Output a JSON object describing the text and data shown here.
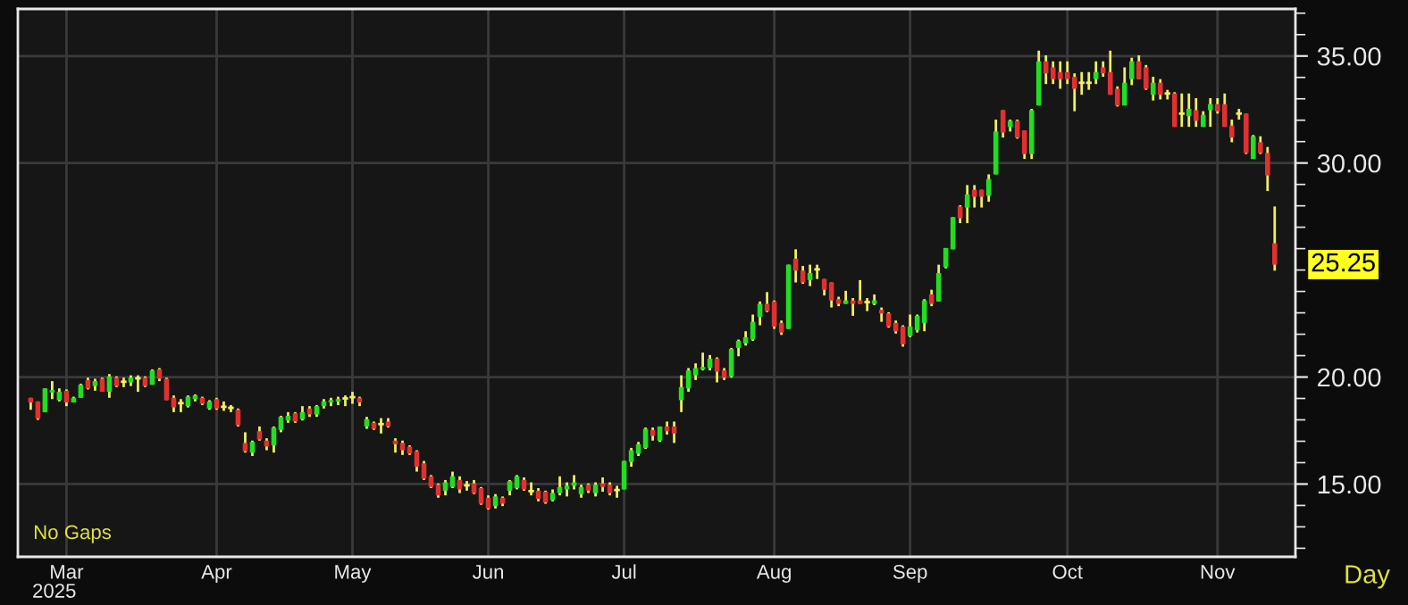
{
  "chart_data": {
    "type": "candlestick",
    "categories": [
      null,
      null,
      null,
      null,
      null,
      "Mar",
      null,
      null,
      null,
      null,
      null,
      null,
      null,
      null,
      null,
      null,
      null,
      null,
      null,
      null,
      null,
      null,
      null,
      null,
      null,
      null,
      "Apr",
      null,
      null,
      null,
      null,
      null,
      null,
      null,
      null,
      null,
      null,
      null,
      null,
      null,
      null,
      null,
      null,
      null,
      null,
      "May",
      null,
      null,
      null,
      null,
      null,
      null,
      null,
      null,
      null,
      null,
      null,
      null,
      null,
      null,
      null,
      null,
      null,
      null,
      "Jun",
      null,
      null,
      null,
      null,
      null,
      null,
      null,
      null,
      null,
      null,
      null,
      null,
      null,
      null,
      null,
      null,
      null,
      null,
      "Jul",
      null,
      null,
      null,
      null,
      null,
      null,
      null,
      null,
      null,
      null,
      null,
      null,
      null,
      null,
      null,
      null,
      null,
      null,
      null,
      null,
      "Aug",
      null,
      null,
      null,
      null,
      null,
      null,
      null,
      null,
      null,
      null,
      null,
      null,
      null,
      null,
      null,
      null,
      null,
      null,
      "Sep",
      null,
      null,
      null,
      null,
      null,
      null,
      null,
      null,
      null,
      null,
      null,
      null,
      null,
      null,
      null,
      null,
      null,
      null,
      null,
      null,
      null,
      "Oct",
      null,
      null,
      null,
      null,
      null,
      null,
      null,
      null,
      null,
      null,
      null,
      null,
      null,
      null,
      null,
      null,
      null,
      null,
      null,
      null,
      "Nov",
      null,
      null,
      null,
      null,
      null,
      null,
      null,
      null
    ],
    "ohlc": [
      [
        19.03,
        19.03,
        18.47,
        18.81
      ],
      [
        18.86,
        18.86,
        18.0,
        18.06
      ],
      [
        18.36,
        19.47,
        18.36,
        19.47
      ],
      [
        19.28,
        19.81,
        18.97,
        19.39
      ],
      [
        18.92,
        19.47,
        18.86,
        19.31
      ],
      [
        19.36,
        19.42,
        18.64,
        18.81
      ],
      [
        18.81,
        19.08,
        18.81,
        19.03
      ],
      [
        19.03,
        19.69,
        19.03,
        19.64
      ],
      [
        19.86,
        19.97,
        19.42,
        19.47
      ],
      [
        19.58,
        19.92,
        19.36,
        19.81
      ],
      [
        19.92,
        19.97,
        19.31,
        19.31
      ],
      [
        19.31,
        20.14,
        19.03,
        20.03
      ],
      [
        19.97,
        20.03,
        19.53,
        19.58
      ],
      [
        19.78,
        19.97,
        19.53,
        19.78
      ],
      [
        19.75,
        20.08,
        19.58,
        19.97
      ],
      [
        19.94,
        20.08,
        19.31,
        19.94
      ],
      [
        19.97,
        20.03,
        19.53,
        19.58
      ],
      [
        19.64,
        20.36,
        19.64,
        20.31
      ],
      [
        20.36,
        20.42,
        19.81,
        19.92
      ],
      [
        19.92,
        19.97,
        18.92,
        18.92
      ],
      [
        19.03,
        19.14,
        18.36,
        18.58
      ],
      [
        18.78,
        18.97,
        18.36,
        18.78
      ],
      [
        18.64,
        19.14,
        18.58,
        19.08
      ],
      [
        18.97,
        19.19,
        18.86,
        19.14
      ],
      [
        19.03,
        19.08,
        18.69,
        18.75
      ],
      [
        18.53,
        18.92,
        18.47,
        18.86
      ],
      [
        18.97,
        19.03,
        18.47,
        18.53
      ],
      [
        18.61,
        18.86,
        18.42,
        18.61
      ],
      [
        18.56,
        18.69,
        18.36,
        18.56
      ],
      [
        18.47,
        18.53,
        17.69,
        17.75
      ],
      [
        16.92,
        17.42,
        16.47,
        16.53
      ],
      [
        16.47,
        17.03,
        16.31,
        16.97
      ],
      [
        17.47,
        17.69,
        17.03,
        17.08
      ],
      [
        17.03,
        17.14,
        16.58,
        16.75
      ],
      [
        16.81,
        17.69,
        16.47,
        17.64
      ],
      [
        17.53,
        18.19,
        17.42,
        18.14
      ],
      [
        17.97,
        18.36,
        17.86,
        18.19
      ],
      [
        18.31,
        18.36,
        17.86,
        17.92
      ],
      [
        18.03,
        18.64,
        17.97,
        18.36
      ],
      [
        18.53,
        18.64,
        18.14,
        18.25
      ],
      [
        18.25,
        18.69,
        18.14,
        18.64
      ],
      [
        18.64,
        18.97,
        18.53,
        18.86
      ],
      [
        18.81,
        19.03,
        18.64,
        18.92
      ],
      [
        18.86,
        19.08,
        18.69,
        18.97
      ],
      [
        19.0,
        19.14,
        18.64,
        19.0
      ],
      [
        19.06,
        19.31,
        18.75,
        19.06
      ],
      [
        19.03,
        19.08,
        18.64,
        18.81
      ],
      [
        17.69,
        18.14,
        17.58,
        18.03
      ],
      [
        17.86,
        17.92,
        17.53,
        17.58
      ],
      [
        17.8,
        18.08,
        17.36,
        17.8
      ],
      [
        17.92,
        18.08,
        17.64,
        17.69
      ],
      [
        17.03,
        17.14,
        16.47,
        16.86
      ],
      [
        16.92,
        17.03,
        16.36,
        16.58
      ],
      [
        16.75,
        16.81,
        16.36,
        16.42
      ],
      [
        16.53,
        16.58,
        15.58,
        15.81
      ],
      [
        15.97,
        16.08,
        15.19,
        15.25
      ],
      [
        15.36,
        15.42,
        14.81,
        14.86
      ],
      [
        14.97,
        15.03,
        14.36,
        14.47
      ],
      [
        14.69,
        15.19,
        14.47,
        15.08
      ],
      [
        14.86,
        15.58,
        14.81,
        15.36
      ],
      [
        15.19,
        15.36,
        14.58,
        14.75
      ],
      [
        14.94,
        15.14,
        14.69,
        14.94
      ],
      [
        15.03,
        15.19,
        14.53,
        14.58
      ],
      [
        14.81,
        14.86,
        14.03,
        14.08
      ],
      [
        14.36,
        14.47,
        13.81,
        13.86
      ],
      [
        13.97,
        14.53,
        13.86,
        14.42
      ],
      [
        14.36,
        14.42,
        13.97,
        14.08
      ],
      [
        14.69,
        15.19,
        14.47,
        15.14
      ],
      [
        14.81,
        15.42,
        14.75,
        15.36
      ],
      [
        15.19,
        15.31,
        14.69,
        14.75
      ],
      [
        14.67,
        15.08,
        14.47,
        14.67
      ],
      [
        14.69,
        14.81,
        14.19,
        14.31
      ],
      [
        14.64,
        14.69,
        14.08,
        14.14
      ],
      [
        14.25,
        14.75,
        14.19,
        14.58
      ],
      [
        14.58,
        15.36,
        14.47,
        14.86
      ],
      [
        14.75,
        15.08,
        14.42,
        14.92
      ],
      [
        14.92,
        15.42,
        14.75,
        15.08
      ],
      [
        14.53,
        14.97,
        14.36,
        14.86
      ],
      [
        14.97,
        15.03,
        14.58,
        14.69
      ],
      [
        14.58,
        15.08,
        14.42,
        14.97
      ],
      [
        15.03,
        15.31,
        14.64,
        14.86
      ],
      [
        14.97,
        15.08,
        14.47,
        14.58
      ],
      [
        14.72,
        14.92,
        14.36,
        14.72
      ],
      [
        14.75,
        16.08,
        14.75,
        16.08
      ],
      [
        16.03,
        16.69,
        15.81,
        16.58
      ],
      [
        16.42,
        16.97,
        16.31,
        16.86
      ],
      [
        16.69,
        17.64,
        16.64,
        17.58
      ],
      [
        17.53,
        17.64,
        17.03,
        17.25
      ],
      [
        17.03,
        17.69,
        16.97,
        17.69
      ],
      [
        17.69,
        17.92,
        17.31,
        17.47
      ],
      [
        17.69,
        17.92,
        16.92,
        17.36
      ],
      [
        18.92,
        20.08,
        18.36,
        19.53
      ],
      [
        19.47,
        20.42,
        19.31,
        20.31
      ],
      [
        20.08,
        20.64,
        19.86,
        20.42
      ],
      [
        20.36,
        21.14,
        20.31,
        20.47
      ],
      [
        20.42,
        21.03,
        20.31,
        20.86
      ],
      [
        20.86,
        20.92,
        19.75,
        20.25
      ],
      [
        20.31,
        20.42,
        19.86,
        19.97
      ],
      [
        20.03,
        21.36,
        19.97,
        21.31
      ],
      [
        21.36,
        21.75,
        20.97,
        21.69
      ],
      [
        21.58,
        22.14,
        21.47,
        21.86
      ],
      [
        21.75,
        22.92,
        21.69,
        22.58
      ],
      [
        22.81,
        23.53,
        22.42,
        23.42
      ],
      [
        23.42,
        23.97,
        23.03,
        23.08
      ],
      [
        23.53,
        23.58,
        22.25,
        22.36
      ],
      [
        22.53,
        22.64,
        21.97,
        22.08
      ],
      [
        22.25,
        25.25,
        22.25,
        25.25
      ],
      [
        25.53,
        25.97,
        24.42,
        24.97
      ],
      [
        24.97,
        25.19,
        24.36,
        24.42
      ],
      [
        24.53,
        25.25,
        24.25,
        24.86
      ],
      [
        25.03,
        25.25,
        24.58,
        25.03
      ],
      [
        24.58,
        24.58,
        23.81,
        24.08
      ],
      [
        24.42,
        24.42,
        23.25,
        23.58
      ],
      [
        23.64,
        23.75,
        23.31,
        23.42
      ],
      [
        23.42,
        24.03,
        23.42,
        23.58
      ],
      [
        23.58,
        23.69,
        22.86,
        23.42
      ],
      [
        23.58,
        24.53,
        23.42,
        23.42
      ],
      [
        23.5,
        23.69,
        23.08,
        23.5
      ],
      [
        23.42,
        23.86,
        23.36,
        23.58
      ],
      [
        23.14,
        23.25,
        22.58,
        22.97
      ],
      [
        22.97,
        23.03,
        22.31,
        22.36
      ],
      [
        22.53,
        22.64,
        22.03,
        22.14
      ],
      [
        22.36,
        22.42,
        21.42,
        21.53
      ],
      [
        21.92,
        22.92,
        21.86,
        22.36
      ],
      [
        22.19,
        22.92,
        22.08,
        22.86
      ],
      [
        22.53,
        23.64,
        22.14,
        23.58
      ],
      [
        23.86,
        24.08,
        23.31,
        23.42
      ],
      [
        23.53,
        25.25,
        23.53,
        24.86
      ],
      [
        25.14,
        26.03,
        25.08,
        26.03
      ],
      [
        25.97,
        27.47,
        25.97,
        27.47
      ],
      [
        27.97,
        28.03,
        27.19,
        27.42
      ],
      [
        27.92,
        28.97,
        27.19,
        28.53
      ],
      [
        28.75,
        28.97,
        27.92,
        28.42
      ],
      [
        28.75,
        28.75,
        27.92,
        28.42
      ],
      [
        28.47,
        29.47,
        28.19,
        29.25
      ],
      [
        29.47,
        32.03,
        29.47,
        31.47
      ],
      [
        32.47,
        32.47,
        31.19,
        31.42
      ],
      [
        31.69,
        32.03,
        31.47,
        31.97
      ],
      [
        31.97,
        32.03,
        31.14,
        31.19
      ],
      [
        31.53,
        31.53,
        30.19,
        30.42
      ],
      [
        30.42,
        32.53,
        30.19,
        32.47
      ],
      [
        32.69,
        35.25,
        32.69,
        34.75
      ],
      [
        34.75,
        35.03,
        33.69,
        34.19
      ],
      [
        34.47,
        34.75,
        33.69,
        33.92
      ],
      [
        34.25,
        34.75,
        33.47,
        33.92
      ],
      [
        34.25,
        34.75,
        33.69,
        33.92
      ],
      [
        34.03,
        34.19,
        32.42,
        33.47
      ],
      [
        33.75,
        34.25,
        33.19,
        33.75
      ],
      [
        33.75,
        34.25,
        33.42,
        33.75
      ],
      [
        33.92,
        34.75,
        33.69,
        34.25
      ],
      [
        34.47,
        34.75,
        34.03,
        34.19
      ],
      [
        34.25,
        35.25,
        33.19,
        33.19
      ],
      [
        33.47,
        33.58,
        32.64,
        32.69
      ],
      [
        32.69,
        34.47,
        32.69,
        33.75
      ],
      [
        33.92,
        34.92,
        33.64,
        34.75
      ],
      [
        34.75,
        35.03,
        33.92,
        33.92
      ],
      [
        34.47,
        34.58,
        33.42,
        33.47
      ],
      [
        33.19,
        34.03,
        32.92,
        33.75
      ],
      [
        33.75,
        33.92,
        32.97,
        33.19
      ],
      [
        33.25,
        33.42,
        32.97,
        33.25
      ],
      [
        33.25,
        33.31,
        31.69,
        31.69
      ],
      [
        32.31,
        33.25,
        31.69,
        32.31
      ],
      [
        32.19,
        33.25,
        31.69,
        32.53
      ],
      [
        32.47,
        33.03,
        31.69,
        31.97
      ],
      [
        31.69,
        32.42,
        31.69,
        32.25
      ],
      [
        32.47,
        33.03,
        31.69,
        32.75
      ],
      [
        32.75,
        33.03,
        32.31,
        32.42
      ],
      [
        32.75,
        33.25,
        31.69,
        31.69
      ],
      [
        31.75,
        32.03,
        30.97,
        31.19
      ],
      [
        32.31,
        32.53,
        32.03,
        32.31
      ],
      [
        32.31,
        32.31,
        30.42,
        30.47
      ],
      [
        30.19,
        31.31,
        30.19,
        31.25
      ],
      [
        30.97,
        31.25,
        30.42,
        30.47
      ],
      [
        30.47,
        30.75,
        28.69,
        29.42
      ],
      [
        26.25,
        27.97,
        24.97,
        25.25
      ]
    ],
    "ylim": [
      11.6,
      37.2
    ],
    "yticks": [
      {
        "value": 12,
        "label": null
      },
      {
        "value": 13,
        "label": null
      },
      {
        "value": 14,
        "label": null
      },
      {
        "value": 15,
        "label": "15.00"
      },
      {
        "value": 16,
        "label": null
      },
      {
        "value": 17,
        "label": null
      },
      {
        "value": 18,
        "label": null
      },
      {
        "value": 19,
        "label": null
      },
      {
        "value": 20,
        "label": "20.00"
      },
      {
        "value": 21,
        "label": null
      },
      {
        "value": 22,
        "label": null
      },
      {
        "value": 23,
        "label": null
      },
      {
        "value": 24,
        "label": null
      },
      {
        "value": 25,
        "label": null
      },
      {
        "value": 26,
        "label": null
      },
      {
        "value": 27,
        "label": null
      },
      {
        "value": 28,
        "label": null
      },
      {
        "value": 29,
        "label": null
      },
      {
        "value": 30,
        "label": "30.00"
      },
      {
        "value": 31,
        "label": null
      },
      {
        "value": 32,
        "label": null
      },
      {
        "value": 33,
        "label": null
      },
      {
        "value": 34,
        "label": null
      },
      {
        "value": 35,
        "label": "35.00"
      },
      {
        "value": 36,
        "label": null
      },
      {
        "value": 37,
        "label": null
      }
    ],
    "grid": true,
    "annotations": [
      "No Gaps",
      "2025",
      "Day",
      "25.25"
    ]
  }
}
